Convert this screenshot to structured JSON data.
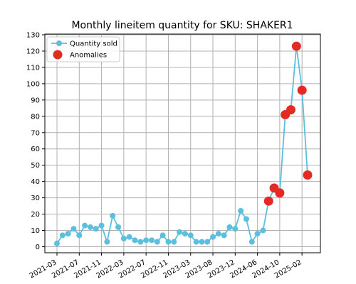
{
  "chart_data": {
    "type": "line",
    "title": "Monthly lineitem quantity for SKU: SHAKER1",
    "xlabel": "",
    "ylabel": "",
    "ylim": [
      0,
      130
    ],
    "yticks": [
      0,
      10,
      20,
      30,
      40,
      50,
      60,
      70,
      80,
      90,
      100,
      110,
      120,
      130
    ],
    "xticks": [
      "2021-03",
      "2021-07",
      "2021-11",
      "2022-03",
      "2022-07",
      "2022-11",
      "2023-03",
      "2023-08",
      "2023-12",
      "2024-06",
      "2024-10",
      "2025-02"
    ],
    "grid": true,
    "legend_position": "top-left",
    "series": [
      {
        "name": "Quantity sold",
        "color": "#5bc0de",
        "values": [
          2,
          7,
          8,
          11,
          7,
          13,
          12,
          11,
          13,
          3,
          19,
          12,
          5,
          6,
          4,
          3,
          4,
          4,
          3,
          7,
          3,
          3,
          9,
          8,
          7,
          3,
          3,
          3,
          6,
          8,
          7,
          12,
          11,
          22,
          17,
          3,
          8,
          10,
          28,
          36,
          33,
          81,
          84,
          123,
          96,
          44
        ]
      },
      {
        "name": "Anomalies",
        "color": "#e32b24",
        "type": "scatter",
        "points": [
          {
            "index": 38,
            "value": 28
          },
          {
            "index": 39,
            "value": 36
          },
          {
            "index": 40,
            "value": 33
          },
          {
            "index": 41,
            "value": 81
          },
          {
            "index": 42,
            "value": 84
          },
          {
            "index": 43,
            "value": 123
          },
          {
            "index": 44,
            "value": 96
          },
          {
            "index": 45,
            "value": 44
          }
        ]
      }
    ]
  }
}
